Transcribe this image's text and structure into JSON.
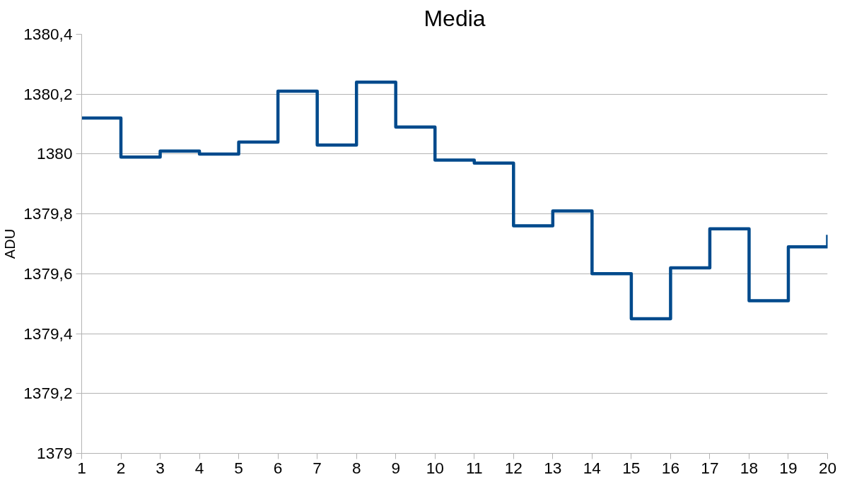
{
  "chart_data": {
    "type": "step",
    "title": "Media",
    "ylabel": "ADU",
    "x": [
      1,
      2,
      3,
      4,
      5,
      6,
      7,
      8,
      9,
      10,
      11,
      12,
      13,
      14,
      15,
      16,
      17,
      18,
      19,
      20
    ],
    "series": [
      {
        "color": "#004a8c",
        "values": [
          1380.12,
          1379.99,
          1380.01,
          1380.0,
          1380.04,
          1380.21,
          1380.03,
          1380.24,
          1380.09,
          1379.98,
          1379.97,
          1379.76,
          1379.81,
          1379.6,
          1379.45,
          1379.62,
          1379.75,
          1379.51,
          1379.69,
          1379.73
        ]
      }
    ],
    "xlim": [
      1,
      20
    ],
    "xticks": [
      1,
      2,
      3,
      4,
      5,
      6,
      7,
      8,
      9,
      10,
      11,
      12,
      13,
      14,
      15,
      16,
      17,
      18,
      19,
      20
    ],
    "ylim": [
      1379,
      1380.4
    ],
    "yticks": [
      1379,
      {
        "value": 1379.2,
        "label": "1379,2"
      },
      {
        "value": 1379.4,
        "label": "1379,4"
      },
      {
        "value": 1379.6,
        "label": "1379,6"
      },
      {
        "value": 1379.8,
        "label": "1379,8"
      },
      1380,
      {
        "value": 1380.2,
        "label": "1380,2"
      },
      {
        "value": 1380.4,
        "label": "1380,4"
      }
    ],
    "grid": "y",
    "marker": "none",
    "line_style": "solid"
  }
}
